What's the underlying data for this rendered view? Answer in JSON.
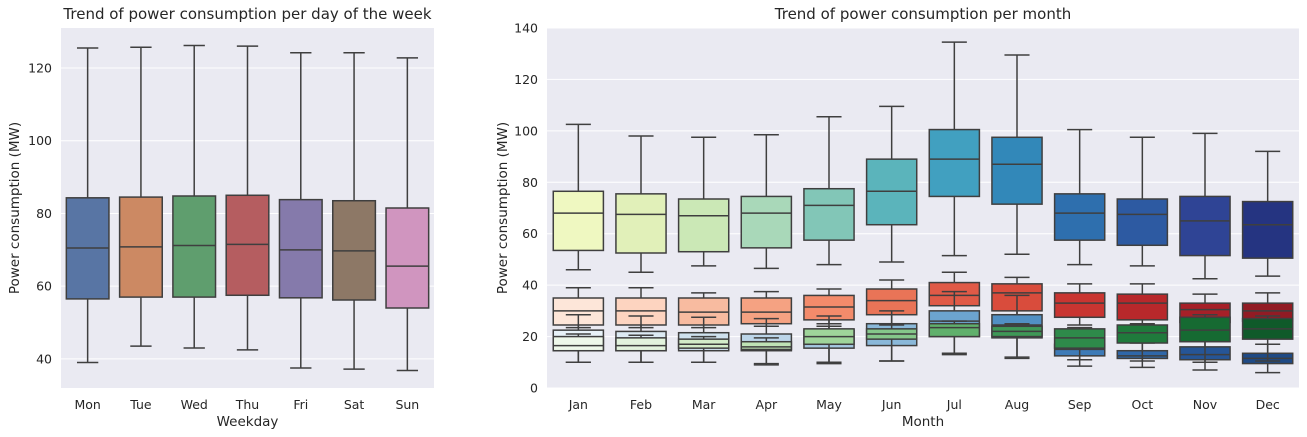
{
  "chart_data": [
    {
      "type": "box",
      "title": "Trend of power consumption per day of the week",
      "xlabel": "Weekday",
      "ylabel": "Power consumption (MW)",
      "ylim": [
        32,
        131
      ],
      "yticks": [
        40,
        60,
        80,
        100,
        120
      ],
      "grid": true,
      "categories": [
        "Mon",
        "Tue",
        "Wed",
        "Thu",
        "Fri",
        "Sat",
        "Sun"
      ],
      "series": [
        {
          "boxes": [
            {
              "min": 39,
              "q1": 56.5,
              "median": 70.5,
              "q3": 84.3,
              "max": 125.5,
              "color": "#5875a4"
            },
            {
              "min": 43.5,
              "q1": 57,
              "median": 70.8,
              "q3": 84.5,
              "max": 125.7,
              "color": "#cc8963"
            },
            {
              "min": 43,
              "q1": 57,
              "median": 71.2,
              "q3": 84.8,
              "max": 126.2,
              "color": "#5f9e6e"
            },
            {
              "min": 42.5,
              "q1": 57.5,
              "median": 71.5,
              "q3": 85,
              "max": 126,
              "color": "#b55d60"
            },
            {
              "min": 37.5,
              "q1": 56.8,
              "median": 70,
              "q3": 83.8,
              "max": 124.2,
              "color": "#857aab"
            },
            {
              "min": 37.2,
              "q1": 56.2,
              "median": 69.7,
              "q3": 83.5,
              "max": 124.2,
              "color": "#8d7866"
            },
            {
              "min": 36.8,
              "q1": 54,
              "median": 65.5,
              "q3": 81.5,
              "max": 122.8,
              "color": "#d095bf"
            }
          ]
        }
      ]
    },
    {
      "type": "box",
      "title": "Trend of power consumption per month",
      "xlabel": "Month",
      "ylabel": "Power consumption (MW)",
      "ylim": [
        0,
        140
      ],
      "yticks": [
        0,
        20,
        40,
        60,
        80,
        100,
        120,
        140
      ],
      "grid": true,
      "categories": [
        "Jan",
        "Feb",
        "Mar",
        "Apr",
        "May",
        "Jun",
        "Jul",
        "Aug",
        "Sep",
        "Oct",
        "Nov",
        "Dec"
      ],
      "series": [
        {
          "boxes": [
            {
              "min": 46,
              "q1": 53.5,
              "median": 68,
              "q3": 76.5,
              "max": 102.5,
              "color": "#eff8c1"
            },
            {
              "min": 45,
              "q1": 52.5,
              "median": 67.5,
              "q3": 75.5,
              "max": 98,
              "color": "#e1f0b9"
            },
            {
              "min": 47.5,
              "q1": 53,
              "median": 67,
              "q3": 73.5,
              "max": 97.5,
              "color": "#cbe8b6"
            },
            {
              "min": 46.5,
              "q1": 54.5,
              "median": 68,
              "q3": 74.5,
              "max": 98.5,
              "color": "#a9d8b9"
            },
            {
              "min": 48,
              "q1": 57.5,
              "median": 71,
              "q3": 77.5,
              "max": 105.5,
              "color": "#82c6b7"
            },
            {
              "min": 49,
              "q1": 63.5,
              "median": 76.5,
              "q3": 89,
              "max": 109.5,
              "color": "#5bb4bb"
            },
            {
              "min": 51.5,
              "q1": 74.5,
              "median": 89,
              "q3": 100.5,
              "max": 134.5,
              "color": "#41a0c0"
            },
            {
              "min": 52,
              "q1": 71.5,
              "median": 87,
              "q3": 97.5,
              "max": 129.5,
              "color": "#3288b9"
            },
            {
              "min": 48,
              "q1": 57.5,
              "median": 68,
              "q3": 75.5,
              "max": 100.5,
              "color": "#2e6fae"
            },
            {
              "min": 47.5,
              "q1": 55.5,
              "median": 67.5,
              "q3": 73.5,
              "max": 97.5,
              "color": "#2d5aa2"
            },
            {
              "min": 42.5,
              "q1": 51.5,
              "median": 65,
              "q3": 74.5,
              "max": 99,
              "color": "#2f4495"
            },
            {
              "min": 43.5,
              "q1": 50.5,
              "median": 63.5,
              "q3": 72.5,
              "max": 92,
              "color": "#253481"
            }
          ]
        },
        {
          "boxes": [
            {
              "min": 23.5,
              "q1": 24.5,
              "median": 30,
              "q3": 35,
              "max": 39,
              "color": "#fde6d9"
            },
            {
              "min": 23.5,
              "q1": 24.5,
              "median": 30,
              "q3": 35,
              "max": 39,
              "color": "#fdd4c0"
            },
            {
              "min": 23.5,
              "q1": 24.5,
              "median": 29.5,
              "q3": 35,
              "max": 37,
              "color": "#f8bba0"
            },
            {
              "min": 24,
              "q1": 25,
              "median": 29.5,
              "q3": 35,
              "max": 37.5,
              "color": "#f5a282"
            },
            {
              "min": 25,
              "q1": 26.5,
              "median": 31.5,
              "q3": 36,
              "max": 38.5,
              "color": "#f38b6b"
            },
            {
              "min": 25,
              "q1": 28.5,
              "median": 34,
              "q3": 38.5,
              "max": 42,
              "color": "#e97457"
            },
            {
              "min": 25.5,
              "q1": 32,
              "median": 36,
              "q3": 41,
              "max": 45,
              "color": "#e05a47"
            },
            {
              "min": 25.5,
              "q1": 30,
              "median": 37,
              "q3": 40.5,
              "max": 43,
              "color": "#d94c3c"
            },
            {
              "min": 24.5,
              "q1": 27.5,
              "median": 33,
              "q3": 37,
              "max": 40.5,
              "color": "#c93531"
            },
            {
              "min": 24.5,
              "q1": 26.5,
              "median": 33,
              "q3": 36.5,
              "max": 40.5,
              "color": "#b8282b"
            },
            {
              "min": 25,
              "q1": 25.5,
              "median": 30.5,
              "q3": 33,
              "max": 36.5,
              "color": "#a62028"
            },
            {
              "min": 25.5,
              "q1": 26,
              "median": 30,
              "q3": 33,
              "max": 37,
              "color": "#911b24"
            }
          ]
        },
        {
          "boxes": [
            {
              "min": 10,
              "q1": 14.5,
              "median": 19,
              "q3": 22.5,
              "max": 28.5,
              "color": "#e8f2f8"
            },
            {
              "min": 10,
              "q1": 14.5,
              "median": 19,
              "q3": 22,
              "max": 28,
              "color": "#dceaf3"
            },
            {
              "min": 10,
              "q1": 14.5,
              "median": 18,
              "q3": 21.5,
              "max": 27.5,
              "color": "#cfe1ee"
            },
            {
              "min": 9.5,
              "q1": 14.5,
              "median": 17.5,
              "q3": 21,
              "max": 27,
              "color": "#bcd5e9"
            },
            {
              "min": 10,
              "q1": 15.5,
              "median": 19,
              "q3": 22.5,
              "max": 28,
              "color": "#a5c8e1"
            },
            {
              "min": 10.5,
              "q1": 16.5,
              "median": 21,
              "q3": 25,
              "max": 30,
              "color": "#8ab8d9"
            },
            {
              "min": 13,
              "q1": 20,
              "median": 26,
              "q3": 30,
              "max": 37.5,
              "color": "#6ca4cf"
            },
            {
              "min": 11.5,
              "q1": 19.5,
              "median": 24.5,
              "q3": 28.5,
              "max": 36,
              "color": "#5190c4"
            },
            {
              "min": 8.5,
              "q1": 12.5,
              "median": 15,
              "q3": 17,
              "max": 21,
              "color": "#3e7bb7"
            },
            {
              "min": 8,
              "q1": 11.5,
              "median": 12.5,
              "q3": 14.5,
              "max": 17.5,
              "color": "#2f67a9"
            },
            {
              "min": 7,
              "q1": 11,
              "median": 13,
              "q3": 16,
              "max": 21,
              "color": "#265596"
            },
            {
              "min": 6,
              "q1": 9.5,
              "median": 11.5,
              "q3": 13.5,
              "max": 17,
              "color": "#1f4a85"
            }
          ]
        },
        {
          "boxes": [
            {
              "min": 10,
              "q1": 14.5,
              "median": 16.5,
              "q3": 20,
              "max": 21,
              "color": "#eef8ea"
            },
            {
              "min": 10,
              "q1": 14.5,
              "median": 16.5,
              "q3": 19.5,
              "max": 20.5,
              "color": "#e2f3dd"
            },
            {
              "min": 10,
              "q1": 15.5,
              "median": 17,
              "q3": 19,
              "max": 20,
              "color": "#d3ecc9"
            },
            {
              "min": 9,
              "q1": 15,
              "median": 16,
              "q3": 18,
              "max": 19.5,
              "color": "#bfe3b5"
            },
            {
              "min": 9.5,
              "q1": 17,
              "median": 20,
              "q3": 23,
              "max": 24,
              "color": "#9fd49a"
            },
            {
              "min": 10.5,
              "q1": 19,
              "median": 21,
              "q3": 23,
              "max": 24.5,
              "color": "#85c78a"
            },
            {
              "min": 13.5,
              "q1": 20,
              "median": 23.5,
              "q3": 25,
              "max": 26,
              "color": "#60b06c"
            },
            {
              "min": 12,
              "q1": 20,
              "median": 22,
              "q3": 24,
              "max": 25,
              "color": "#3f9857"
            },
            {
              "min": 11,
              "q1": 15.5,
              "median": 19.5,
              "q3": 23,
              "max": 23.5,
              "color": "#2e8a4a"
            },
            {
              "min": 10.5,
              "q1": 17.5,
              "median": 21.5,
              "q3": 24.5,
              "max": 25,
              "color": "#1f7a3c"
            },
            {
              "min": 10,
              "q1": 18,
              "median": 22.5,
              "q3": 27.5,
              "max": 28.5,
              "color": "#166a32"
            },
            {
              "min": 10.5,
              "q1": 19,
              "median": 23,
              "q3": 27,
              "max": 28,
              "color": "#0f5a2a"
            }
          ]
        }
      ]
    }
  ]
}
